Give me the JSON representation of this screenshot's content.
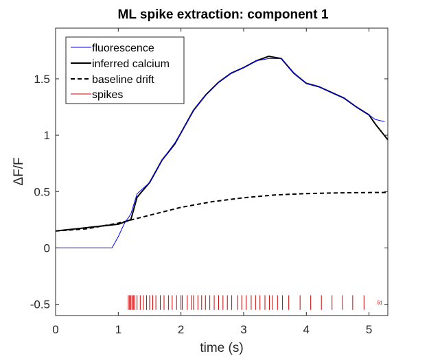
{
  "chart_data": {
    "type": "line",
    "title": "ML spike extraction: component 1",
    "xlabel": "time (s)",
    "ylabel": "ΔF/F",
    "xlim": [
      0,
      5.3
    ],
    "ylim": [
      -0.6,
      1.95
    ],
    "x_ticks": [
      0,
      1,
      2,
      3,
      4,
      5
    ],
    "x_tick_labels": [
      "0",
      "1",
      "2",
      "3",
      "4",
      "5"
    ],
    "y_ticks": [
      -0.5,
      0,
      0.5,
      1,
      1.5
    ],
    "y_tick_labels": [
      "-0.5",
      "0",
      "0.5",
      "1",
      "1.5"
    ],
    "grid": false,
    "legend_position": "top-left",
    "legend": [
      {
        "label": "fluorescence",
        "style": "solid-thin"
      },
      {
        "label": "inferred calcium",
        "style": "solid-thick"
      },
      {
        "label": "baseline drift",
        "style": "dashed"
      },
      {
        "label": "spikes",
        "style": "solid-thin"
      }
    ],
    "colors": {
      "fluorescence": "#0000ff",
      "inferred_calcium": "#000000",
      "baseline_drift": "#000000",
      "spikes": "#cc0000"
    },
    "series": [
      {
        "name": "fluorescence",
        "x": [
          0,
          0.9,
          1.0,
          1.1,
          1.2,
          1.3,
          1.5,
          1.7,
          1.9,
          2.0,
          2.2,
          2.4,
          2.6,
          2.8,
          3.0,
          3.2,
          3.4,
          3.6,
          3.8,
          4.0,
          4.2,
          4.4,
          4.6,
          4.8,
          5.0,
          5.1,
          5.25
        ],
        "y": [
          0,
          0,
          0.1,
          0.22,
          0.3,
          0.48,
          0.58,
          0.78,
          0.93,
          1.02,
          1.22,
          1.36,
          1.47,
          1.55,
          1.6,
          1.66,
          1.68,
          1.68,
          1.55,
          1.46,
          1.43,
          1.38,
          1.33,
          1.25,
          1.18,
          1.14,
          1.12
        ]
      },
      {
        "name": "inferred calcium",
        "x": [
          0,
          1.0,
          1.2,
          1.3,
          1.5,
          1.7,
          1.9,
          2.0,
          2.2,
          2.4,
          2.6,
          2.8,
          3.0,
          3.2,
          3.4,
          3.6,
          3.8,
          4.0,
          4.2,
          4.4,
          4.6,
          4.8,
          5.0,
          5.1,
          5.3
        ],
        "y": [
          0.15,
          0.21,
          0.25,
          0.45,
          0.58,
          0.78,
          0.92,
          1.02,
          1.22,
          1.36,
          1.47,
          1.55,
          1.6,
          1.66,
          1.7,
          1.68,
          1.55,
          1.46,
          1.43,
          1.38,
          1.33,
          1.25,
          1.18,
          1.1,
          0.96
        ]
      },
      {
        "name": "baseline drift",
        "x": [
          0,
          0.5,
          1.0,
          1.5,
          2.0,
          2.5,
          3.0,
          3.5,
          4.0,
          4.5,
          5.0,
          5.3
        ],
        "y": [
          0.15,
          0.17,
          0.22,
          0.29,
          0.36,
          0.41,
          0.445,
          0.47,
          0.482,
          0.488,
          0.491,
          0.492
        ]
      }
    ],
    "spikes": {
      "name": "spikes",
      "y_bottom": -0.55,
      "y_top": -0.42,
      "times": [
        1.16,
        1.18,
        1.2,
        1.22,
        1.24,
        1.26,
        1.3,
        1.35,
        1.4,
        1.45,
        1.5,
        1.55,
        1.6,
        1.67,
        1.73,
        1.8,
        1.86,
        1.93,
        2.0,
        2.02,
        2.1,
        2.17,
        2.2,
        2.27,
        2.33,
        2.39,
        2.46,
        2.53,
        2.6,
        2.67,
        2.74,
        2.81,
        2.9,
        2.97,
        3.04,
        3.12,
        3.19,
        3.26,
        3.34,
        3.41,
        3.46,
        3.54,
        3.62,
        3.72,
        3.9,
        4.07,
        4.24,
        4.41,
        4.58,
        4.74,
        4.92
      ]
    },
    "annotations": [
      {
        "text": "51",
        "x": 5.13,
        "y": -0.5
      }
    ]
  }
}
